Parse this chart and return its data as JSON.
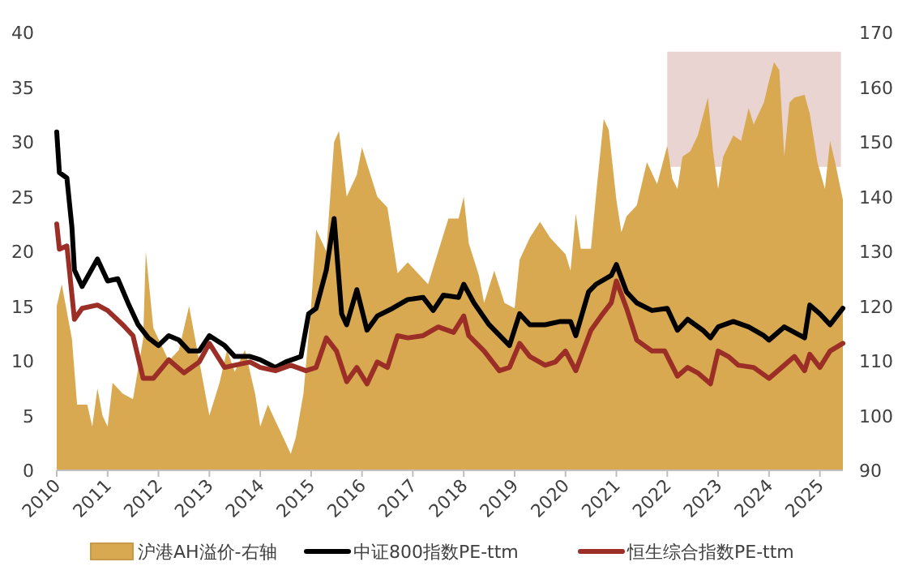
{
  "chart_data": {
    "type": "line",
    "xlim": [
      "2010-01-01",
      "2025-06-15"
    ],
    "xticks": [
      "2010",
      "2011",
      "2012",
      "2013",
      "2014",
      "2015",
      "2016",
      "2017",
      "2018",
      "2019",
      "2020",
      "2021",
      "2022",
      "2023",
      "2024",
      "2025"
    ],
    "ylim": [
      0,
      40
    ],
    "yticks": [
      0,
      5,
      10,
      15,
      20,
      25,
      30,
      35,
      40
    ],
    "y2lim": [
      90,
      170
    ],
    "y2ticks": [
      90,
      100,
      110,
      120,
      130,
      140,
      150,
      160,
      170
    ],
    "legend": "bottom",
    "grid": false,
    "bands": [
      {
        "axis": "x",
        "from": "2022-01-01",
        "to": "2025-06-01",
        "color": "#e9d4d2"
      }
    ],
    "series": [
      {
        "name": "沪港AH溢价-右轴",
        "type": "area",
        "axis": "y2",
        "color": "#d8a951",
        "x": [
          "2010-01-01",
          "2010-02-06",
          "2010-04-20",
          "2010-05-27",
          "2010-08-08",
          "2010-09-13",
          "2010-10-20",
          "2010-11-25",
          "2011-01-01",
          "2011-02-06",
          "2011-04-20",
          "2011-07-02",
          "2011-09-13",
          "2011-10-02",
          "2011-11-25",
          "2012-01-01",
          "2012-03-15",
          "2012-05-27",
          "2012-08-08",
          "2012-10-20",
          "2013-01-01",
          "2013-03-15",
          "2013-05-08",
          "2013-07-02",
          "2013-09-13",
          "2013-11-25",
          "2014-01-01",
          "2014-02-25",
          "2014-04-20",
          "2014-06-15",
          "2014-08-08",
          "2014-09-13",
          "2014-11-07",
          "2015-01-01",
          "2015-02-06",
          "2015-04-20",
          "2015-06-15",
          "2015-07-20",
          "2015-09-13",
          "2015-11-25",
          "2016-01-01",
          "2016-02-06",
          "2016-04-20",
          "2016-07-02",
          "2016-09-13",
          "2016-11-25",
          "2017-02-06",
          "2017-04-20",
          "2017-07-02",
          "2017-09-13",
          "2017-11-25",
          "2018-01-01",
          "2018-02-06",
          "2018-04-20",
          "2018-05-27",
          "2018-08-08",
          "2018-10-20",
          "2019-01-01",
          "2019-02-06",
          "2019-04-20",
          "2019-07-02",
          "2019-09-13",
          "2019-11-25",
          "2020-01-01",
          "2020-02-06",
          "2020-03-15",
          "2020-04-20",
          "2020-07-02",
          "2020-08-08",
          "2020-10-02",
          "2020-11-07",
          "2021-01-01",
          "2021-02-06",
          "2021-03-15",
          "2021-05-27",
          "2021-08-08",
          "2021-10-20",
          "2022-01-01",
          "2022-02-06",
          "2022-03-15",
          "2022-04-20",
          "2022-06-15",
          "2022-08-08",
          "2022-10-20",
          "2022-11-25",
          "2023-01-01",
          "2023-02-06",
          "2023-04-20",
          "2023-06-15",
          "2023-08-08",
          "2023-09-13",
          "2023-11-25",
          "2024-01-01",
          "2024-02-06",
          "2024-03-15",
          "2024-04-20",
          "2024-05-27",
          "2024-07-02",
          "2024-09-13",
          "2024-10-20",
          "2024-12-14",
          "2025-02-06",
          "2025-03-15",
          "2025-04-20",
          "2025-06-15"
        ],
        "values": [
          120,
          124,
          114,
          102,
          102,
          98,
          105,
          100,
          98,
          106,
          104,
          103,
          114,
          130,
          116,
          114,
          110,
          112,
          120,
          110,
          100,
          106,
          112,
          108,
          112,
          104,
          98,
          102,
          99,
          96,
          93,
          96,
          104,
          120,
          134,
          130,
          150,
          152,
          140,
          144,
          149,
          146,
          140,
          138,
          126,
          128,
          126,
          124,
          130,
          136,
          136,
          140,
          131.5,
          125.6,
          120.6,
          126.5,
          120.6,
          119.6,
          128.5,
          132.5,
          135.4,
          132.5,
          130.5,
          129.5,
          126.5,
          136.9,
          130.5,
          130.5,
          140.4,
          154.2,
          152.2,
          139.4,
          133.5,
          136.4,
          138.4,
          146.3,
          142.3,
          149.3,
          143.3,
          141.4,
          147.3,
          148.3,
          151.2,
          158.1,
          148.3,
          141.4,
          147.3,
          151.2,
          150.2,
          156.2,
          153.2,
          157.2,
          161.1,
          164.6,
          163.1,
          147.3,
          157.2,
          158.1,
          158.6,
          155.2,
          146.3,
          141.4,
          150.2,
          146.3,
          139.4
        ]
      },
      {
        "name": "中证800指数PE-ttm",
        "color": "#000000",
        "x": [
          "2010-01-01",
          "2010-01-20",
          "2010-03-15",
          "2010-04-20",
          "2010-05-08",
          "2010-07-02",
          "2010-10-20",
          "2011-01-01",
          "2011-03-15",
          "2011-05-27",
          "2011-08-08",
          "2011-10-20",
          "2012-01-01",
          "2012-03-15",
          "2012-05-27",
          "2012-08-08",
          "2012-10-20",
          "2013-01-01",
          "2013-04-20",
          "2013-07-02",
          "2013-10-20",
          "2014-01-01",
          "2014-04-20",
          "2014-07-02",
          "2014-10-20",
          "2014-12-14",
          "2015-02-06",
          "2015-04-20",
          "2015-06-15",
          "2015-08-08",
          "2015-09-13",
          "2015-11-25",
          "2016-02-06",
          "2016-04-20",
          "2016-08-08",
          "2016-11-25",
          "2017-03-15",
          "2017-05-27",
          "2017-08-08",
          "2017-11-25",
          "2018-01-01",
          "2018-03-15",
          "2018-07-02",
          "2018-11-25",
          "2019-02-06",
          "2019-04-20",
          "2019-08-08",
          "2019-11-25",
          "2020-02-06",
          "2020-03-15",
          "2020-06-15",
          "2020-08-08",
          "2020-11-25",
          "2021-01-01",
          "2021-03-15",
          "2021-05-27",
          "2021-09-13",
          "2022-01-01",
          "2022-03-15",
          "2022-05-27",
          "2022-09-13",
          "2022-11-07",
          "2023-01-01",
          "2023-04-20",
          "2023-08-08",
          "2023-11-25",
          "2024-01-01",
          "2024-04-20",
          "2024-07-02",
          "2024-09-13",
          "2024-10-20",
          "2025-01-01",
          "2025-03-15",
          "2025-06-15"
        ],
        "values": [
          30.9,
          27.2,
          26.7,
          22.2,
          18.3,
          16.8,
          19.3,
          17.3,
          17.5,
          15.3,
          13.3,
          12.1,
          11.4,
          12.3,
          11.9,
          10.9,
          10.9,
          12.3,
          11.4,
          10.4,
          10.4,
          10.1,
          9.4,
          9.9,
          10.4,
          14.3,
          14.8,
          18.3,
          23.0,
          14.3,
          13.3,
          16.5,
          12.8,
          14.1,
          14.8,
          15.6,
          15.8,
          14.6,
          16.0,
          15.8,
          17.0,
          15.3,
          13.3,
          11.4,
          14.3,
          13.3,
          13.3,
          13.6,
          13.6,
          12.3,
          16.3,
          17.0,
          17.8,
          18.8,
          16.3,
          15.3,
          14.6,
          14.8,
          12.8,
          13.8,
          12.8,
          12.1,
          13.1,
          13.6,
          13.1,
          12.3,
          11.9,
          13.1,
          12.6,
          12.1,
          15.1,
          14.3,
          13.3,
          14.8
        ]
      },
      {
        "name": "恒生综合指数PE-ttm",
        "color": "#9b2f27",
        "x": [
          "2010-01-01",
          "2010-01-20",
          "2010-03-15",
          "2010-05-08",
          "2010-07-02",
          "2010-10-20",
          "2011-01-01",
          "2011-04-20",
          "2011-07-02",
          "2011-09-13",
          "2011-11-25",
          "2012-03-15",
          "2012-07-02",
          "2012-10-20",
          "2013-01-01",
          "2013-04-20",
          "2013-07-02",
          "2013-10-20",
          "2014-01-01",
          "2014-04-20",
          "2014-08-08",
          "2014-11-25",
          "2015-02-06",
          "2015-04-20",
          "2015-07-02",
          "2015-09-13",
          "2015-11-25",
          "2016-02-06",
          "2016-04-20",
          "2016-07-02",
          "2016-09-13",
          "2016-11-25",
          "2017-03-15",
          "2017-07-02",
          "2017-10-20",
          "2018-01-01",
          "2018-02-06",
          "2018-05-27",
          "2018-09-13",
          "2018-11-25",
          "2019-02-06",
          "2019-04-20",
          "2019-08-08",
          "2019-10-20",
          "2020-01-01",
          "2020-03-15",
          "2020-07-02",
          "2020-09-13",
          "2020-11-25",
          "2021-01-01",
          "2021-03-15",
          "2021-05-27",
          "2021-09-13",
          "2021-12-14",
          "2022-03-15",
          "2022-05-27",
          "2022-08-08",
          "2022-11-07",
          "2023-01-01",
          "2023-03-15",
          "2023-05-27",
          "2023-09-13",
          "2024-01-01",
          "2024-04-20",
          "2024-07-02",
          "2024-09-13",
          "2024-10-20",
          "2025-01-01",
          "2025-03-15",
          "2025-06-15"
        ],
        "values": [
          22.5,
          20.2,
          20.5,
          13.8,
          14.8,
          15.1,
          14.6,
          13.3,
          12.3,
          8.4,
          8.4,
          10.1,
          8.9,
          9.9,
          11.6,
          9.4,
          9.6,
          9.9,
          9.4,
          9.1,
          9.6,
          9.1,
          9.4,
          12.1,
          10.9,
          8.1,
          9.4,
          7.9,
          9.9,
          9.4,
          12.3,
          12.1,
          12.3,
          13.1,
          12.6,
          14.1,
          12.3,
          10.9,
          9.1,
          9.4,
          11.6,
          10.4,
          9.6,
          9.9,
          10.9,
          9.1,
          12.8,
          14.1,
          15.3,
          17.3,
          14.8,
          11.9,
          10.9,
          10.9,
          8.6,
          9.4,
          8.9,
          7.9,
          10.9,
          10.4,
          9.6,
          9.4,
          8.4,
          9.6,
          10.4,
          9.1,
          10.6,
          9.4,
          10.9,
          11.6
        ]
      }
    ]
  }
}
